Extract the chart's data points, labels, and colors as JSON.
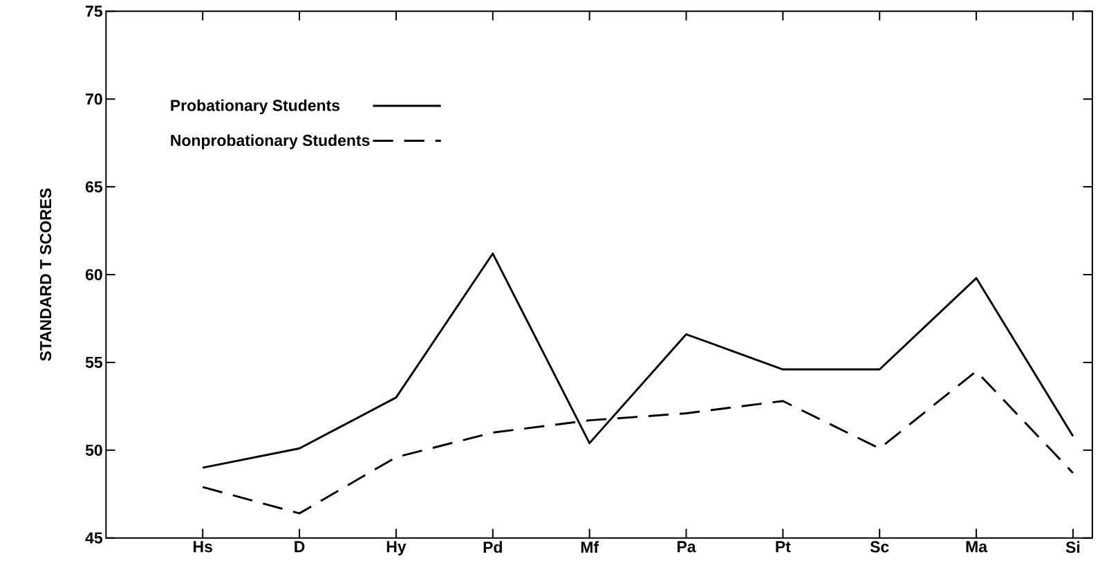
{
  "chart_data": {
    "type": "line",
    "ylabel": "STANDARD T SCORES",
    "categories": [
      "Hs",
      "D",
      "Hy",
      "Pd",
      "Mf",
      "Pa",
      "Pt",
      "Sc",
      "Ma",
      "Si"
    ],
    "ylim": [
      45,
      75
    ],
    "yticks": [
      45,
      50,
      55,
      60,
      65,
      70,
      75
    ],
    "legend": "top left",
    "series": [
      {
        "name": "Probationary Students",
        "color": "#000000",
        "line_style": "solid",
        "values": [
          49.0,
          50.1,
          53.0,
          61.2,
          50.4,
          56.6,
          54.6,
          54.6,
          59.8,
          50.8
        ]
      },
      {
        "name": "Nonprobationary Students",
        "color": "#000000",
        "line_style": "dashed",
        "values": [
          47.9,
          46.4,
          49.6,
          51.0,
          51.7,
          52.1,
          52.8,
          50.1,
          54.5,
          48.7
        ]
      }
    ]
  }
}
